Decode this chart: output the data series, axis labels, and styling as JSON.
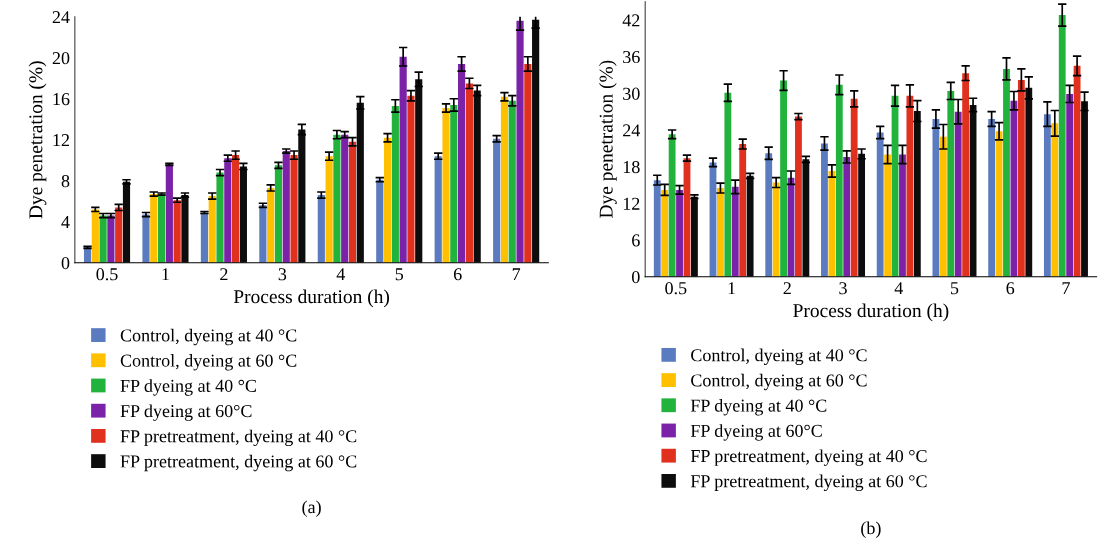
{
  "chart_data": [
    {
      "type": "bar",
      "categories": [
        "0.5",
        "1",
        "2",
        "3",
        "4",
        "5",
        "6",
        "7"
      ],
      "xlabel": "Process duration (h)",
      "ylabel": "Dye penetration (%)",
      "ylim": [
        0,
        24
      ],
      "yticks": [
        0,
        4,
        8,
        12,
        16,
        20,
        24
      ],
      "grid": false,
      "legend": "bottom left",
      "annotations": [
        "(a)"
      ],
      "series": [
        {
          "name": "Control, dyeing at 40 °C",
          "color": "#5b7bc0",
          "values": [
            1.5,
            4.7,
            4.9,
            5.6,
            6.6,
            8.1,
            10.4,
            12.1
          ],
          "errors": [
            0.1,
            0.2,
            0.1,
            0.2,
            0.3,
            0.2,
            0.3,
            0.3
          ]
        },
        {
          "name": "Control, dyeing at 60 °C",
          "color": "#ffc000",
          "values": [
            5.2,
            6.7,
            6.5,
            7.3,
            10.4,
            12.2,
            15.1,
            16.2
          ],
          "errors": [
            0.2,
            0.2,
            0.3,
            0.3,
            0.4,
            0.4,
            0.4,
            0.4
          ]
        },
        {
          "name": "FP dyeing at 40 °C",
          "color": "#21b33c",
          "values": [
            4.6,
            6.7,
            8.8,
            9.5,
            12.5,
            15.3,
            15.4,
            15.8
          ],
          "errors": [
            0.2,
            0.1,
            0.3,
            0.3,
            0.4,
            0.6,
            0.6,
            0.5
          ]
        },
        {
          "name": "FP dyeing at 60°C",
          "color": "#7b22a8",
          "values": [
            4.6,
            9.6,
            10.2,
            10.9,
            12.5,
            20.1,
            19.4,
            23.6
          ],
          "errors": [
            0.2,
            0.1,
            0.3,
            0.2,
            0.3,
            0.9,
            0.7,
            0.9
          ]
        },
        {
          "name": "FP pretreatment, dyeing at 40 °C",
          "color": "#e0301e",
          "values": [
            5.4,
            6.1,
            10.5,
            10.5,
            11.8,
            16.3,
            17.5,
            19.4
          ],
          "errors": [
            0.3,
            0.2,
            0.4,
            0.4,
            0.4,
            0.5,
            0.5,
            0.7
          ]
        },
        {
          "name": "FP pretreatment, dyeing at 60 °C",
          "color": "#0d0d0d",
          "values": [
            7.9,
            6.6,
            9.4,
            13.0,
            15.6,
            17.9,
            16.8,
            23.7
          ],
          "errors": [
            0.2,
            0.2,
            0.3,
            0.5,
            0.6,
            0.7,
            0.5,
            0.8
          ]
        }
      ]
    },
    {
      "type": "bar",
      "categories": [
        "0.5",
        "1",
        "2",
        "3",
        "4",
        "5",
        "6",
        "7"
      ],
      "xlabel": "Process duration (h)",
      "ylabel": "Dye penetration (%)",
      "ylim": [
        0,
        45
      ],
      "yticks": [
        0,
        6,
        12,
        18,
        24,
        30,
        36,
        42
      ],
      "grid": false,
      "legend": "bottom left",
      "annotations": [
        "(b)"
      ],
      "series": [
        {
          "name": "Control, dyeing at 40 °C",
          "color": "#5b7bc0",
          "values": [
            15.8,
            18.7,
            20.2,
            21.8,
            23.6,
            25.8,
            25.8,
            26.6
          ],
          "errors": [
            0.8,
            0.7,
            1.0,
            1.1,
            1.0,
            1.5,
            1.2,
            2.0
          ]
        },
        {
          "name": "Control, dyeing at 60 °C",
          "color": "#ffc000",
          "values": [
            14.2,
            14.5,
            15.4,
            17.3,
            20.0,
            22.9,
            23.8,
            25.1
          ],
          "errors": [
            0.9,
            0.8,
            0.8,
            1.0,
            1.5,
            2.0,
            1.4,
            2.1
          ]
        },
        {
          "name": "FP dyeing at 40 °C",
          "color": "#21b33c",
          "values": [
            23.3,
            30.1,
            32.1,
            31.4,
            29.6,
            30.4,
            34.0,
            42.8
          ],
          "errors": [
            0.7,
            1.4,
            1.6,
            1.6,
            1.7,
            1.4,
            1.8,
            1.8
          ]
        },
        {
          "name": "FP dyeing at 60°C",
          "color": "#7b22a8",
          "values": [
            14.2,
            14.7,
            16.2,
            19.6,
            20.0,
            27.0,
            28.8,
            29.9
          ],
          "errors": [
            0.7,
            1.1,
            1.1,
            1.0,
            1.5,
            2.0,
            1.5,
            1.4
          ]
        },
        {
          "name": "FP pretreatment, dyeing at 40 °C",
          "color": "#e0301e",
          "values": [
            19.4,
            21.7,
            26.2,
            29.1,
            29.6,
            33.3,
            32.2,
            34.5
          ],
          "errors": [
            0.5,
            0.8,
            0.5,
            1.3,
            1.8,
            1.2,
            1.8,
            1.6
          ]
        },
        {
          "name": "FP pretreatment, dyeing at 60 °C",
          "color": "#0d0d0d",
          "values": [
            13.1,
            16.5,
            19.2,
            20.1,
            27.1,
            28.1,
            30.9,
            28.7
          ],
          "errors": [
            0.3,
            0.4,
            0.5,
            0.8,
            1.7,
            1.1,
            1.8,
            1.5
          ]
        }
      ]
    }
  ]
}
